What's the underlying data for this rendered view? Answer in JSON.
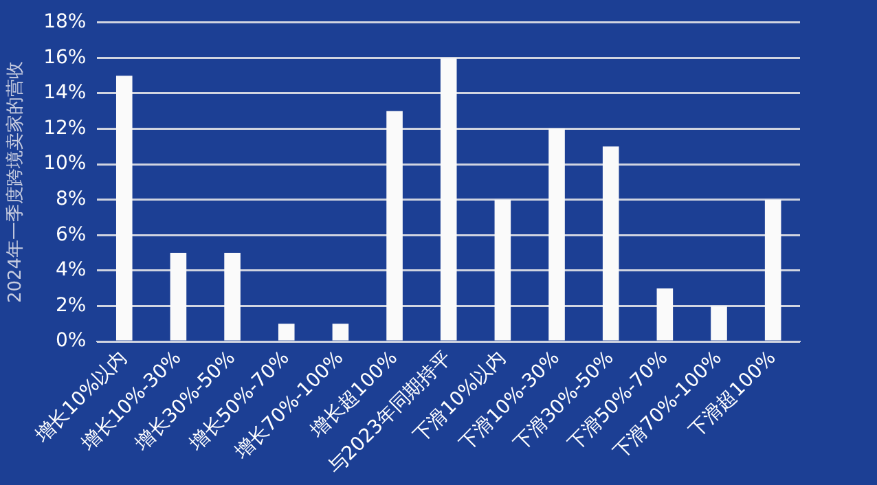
{
  "chart_data": {
    "type": "bar",
    "ylabel": "2024年一季度跨境卖家的营收",
    "categories": [
      "增长10%以内",
      "增长10%-30%",
      "增长30%-50%",
      "增长50%-70%",
      "增长70%-100%",
      "增长超100%",
      "与2023年同期持平",
      "下滑10%以内",
      "下滑10%-30%",
      "下滑30%-50%",
      "下滑50%-70%",
      "下滑70%-100%",
      "下滑超100%"
    ],
    "values": [
      15,
      5,
      5,
      1,
      1,
      13,
      16,
      8,
      12,
      11,
      3,
      2,
      8
    ],
    "color": "#fafafa",
    "ylim": [
      0,
      18
    ],
    "yticks": [
      {
        "value": 0,
        "label": "0%"
      },
      {
        "value": 2,
        "label": "2%"
      },
      {
        "value": 4,
        "label": "4%"
      },
      {
        "value": 6,
        "label": "6%"
      },
      {
        "value": 8,
        "label": "8%"
      },
      {
        "value": 10,
        "label": "10%"
      },
      {
        "value": 12,
        "label": "12%"
      },
      {
        "value": 14,
        "label": "14%"
      },
      {
        "value": 16,
        "label": "16%"
      },
      {
        "value": 18,
        "label": "18%"
      }
    ],
    "grid": "y"
  }
}
